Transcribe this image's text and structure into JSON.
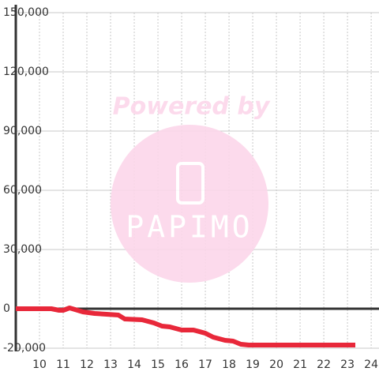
{
  "chart_data": {
    "type": "line",
    "watermark": "Powered by",
    "watermark_brand": "PAPIMO",
    "x": [
      9.0,
      10.5,
      10.83,
      11.0,
      11.27,
      11.5,
      11.83,
      12.33,
      12.83,
      13.33,
      13.6,
      14.33,
      14.83,
      15.17,
      15.5,
      16.0,
      16.5,
      17.0,
      17.33,
      17.83,
      18.17,
      18.5,
      18.83,
      23.33
    ],
    "series": [
      {
        "color": "#e8283a",
        "values": [
          0,
          0,
          -800,
          -800,
          400,
          -400,
          -1600,
          -2400,
          -2800,
          -3200,
          -5200,
          -5600,
          -7200,
          -8800,
          -9200,
          -10800,
          -10800,
          -12400,
          -14400,
          -16000,
          -16400,
          -18000,
          -18400,
          -18400
        ]
      }
    ],
    "xlim": [
      9,
      24.33
    ],
    "xticks": [
      10,
      11,
      12,
      13,
      14,
      15,
      16,
      17,
      18,
      19,
      20,
      21,
      22,
      23,
      24
    ],
    "ylim": [
      -20000,
      150000
    ],
    "yticks": [
      {
        "value": -20000,
        "label": "-20,000"
      },
      0,
      {
        "value": 30000,
        "label": "30,000"
      },
      {
        "value": 60000,
        "label": "60,000"
      },
      {
        "value": 90000,
        "label": "90,000"
      },
      {
        "value": 120000,
        "label": "120,000"
      },
      {
        "value": 150000,
        "label": "150,000"
      }
    ],
    "grid": true
  }
}
